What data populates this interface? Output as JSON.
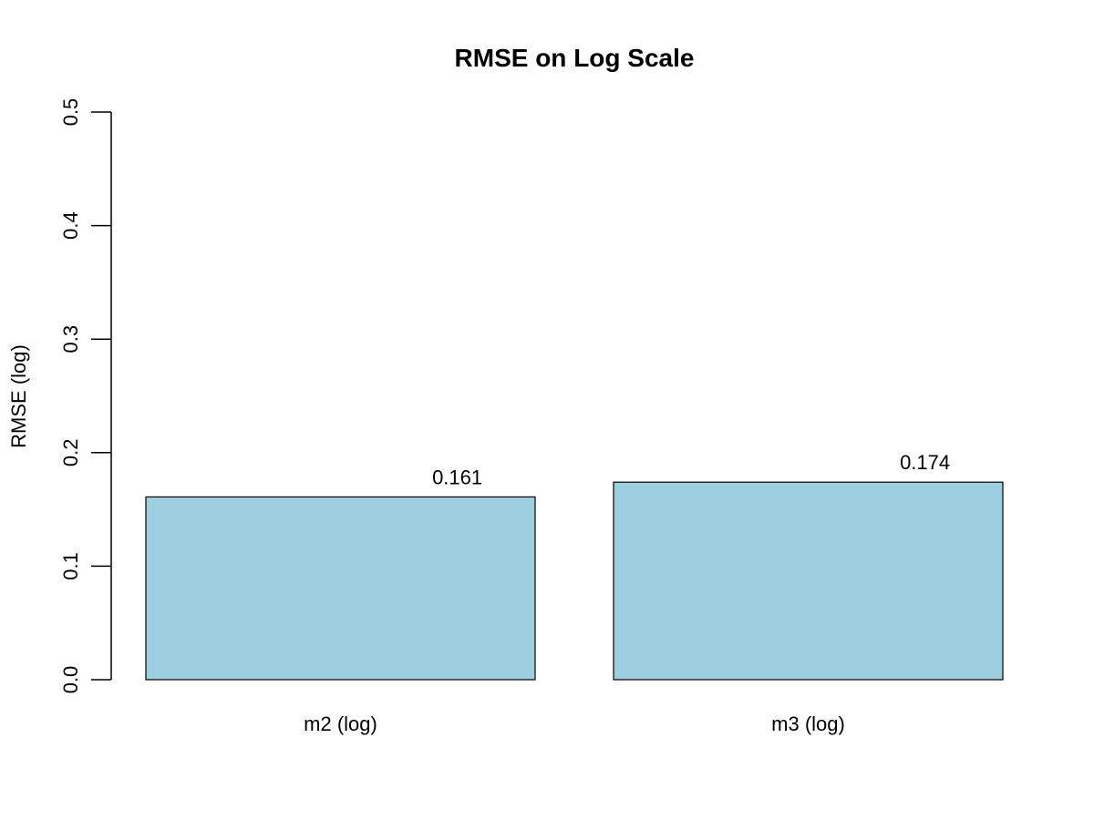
{
  "chart_data": {
    "type": "bar",
    "title": "RMSE on Log Scale",
    "xlabel": "",
    "ylabel": "RMSE (log)",
    "categories": [
      "m2 (log)",
      "m3 (log)"
    ],
    "values": [
      0.161,
      0.174
    ],
    "value_labels": [
      "0.161",
      "0.174"
    ],
    "ylim": [
      0,
      0.5
    ],
    "yticks": [
      0,
      0.1,
      0.2,
      0.3,
      0.4,
      0.5
    ],
    "ytick_labels": [
      "0.0",
      "0.1",
      "0.2",
      "0.3",
      "0.4",
      "0.5"
    ],
    "grid": false,
    "legend": "none",
    "bar_fill": "#9ecfe0",
    "bar_stroke": "#000000"
  }
}
